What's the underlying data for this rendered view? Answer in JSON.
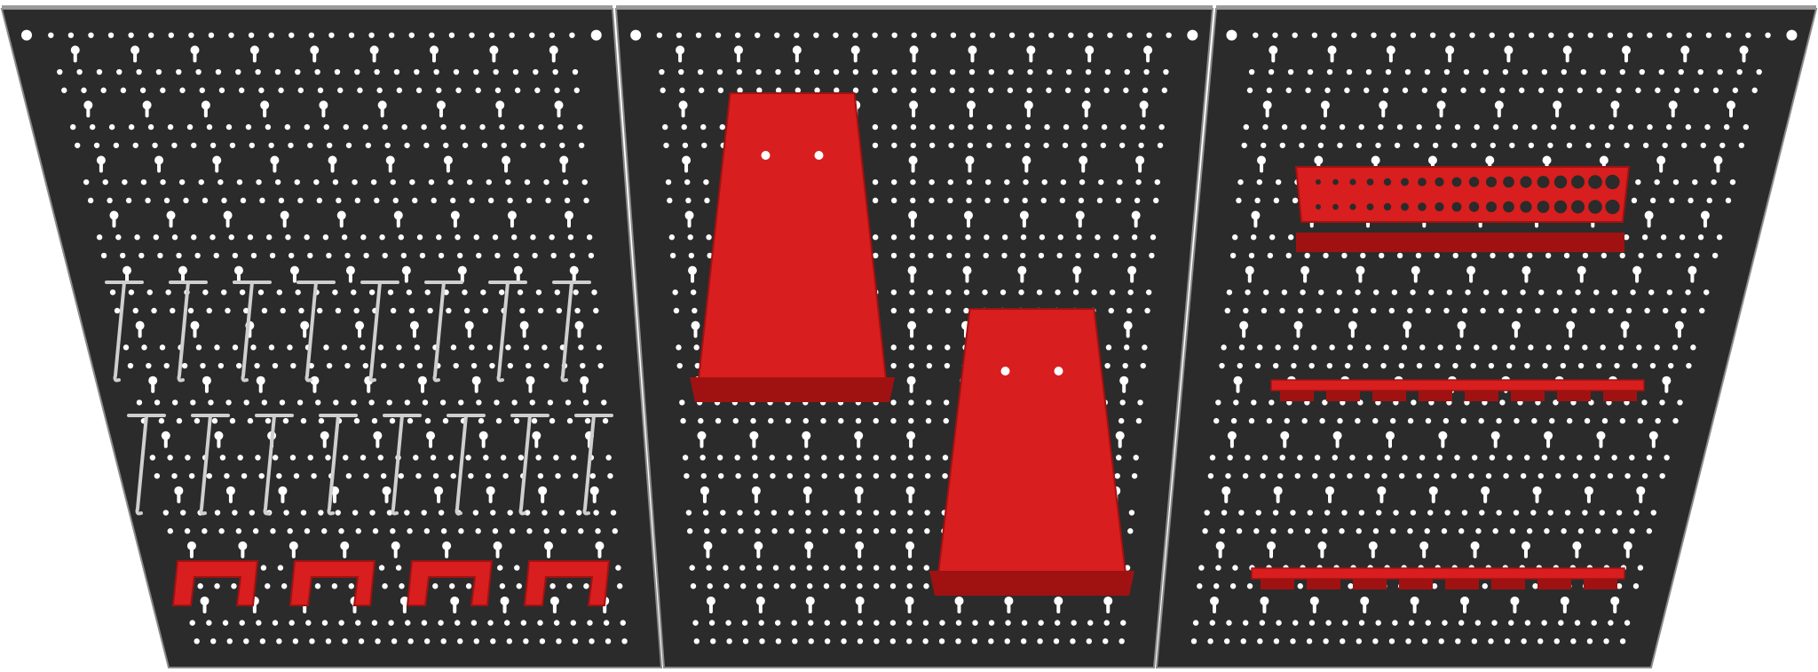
{
  "scene": {
    "subject": "pegboard-wall-set",
    "panel_count": 3,
    "colors": {
      "board": "#2b2b2b",
      "board_edge": "#8a8a8a",
      "holes": "#ffffff",
      "accessory_red": "#d81e1e",
      "accessory_red_dark": "#a01212",
      "hook_metal": "#cfcfcf"
    },
    "accessories": {
      "panel_1": [
        "pegboard-hooks",
        "u-shaped-hooks"
      ],
      "panel_2": [
        "wrench-holders"
      ],
      "panel_3": [
        "socket-rail",
        "bit-holder-bars"
      ]
    }
  }
}
